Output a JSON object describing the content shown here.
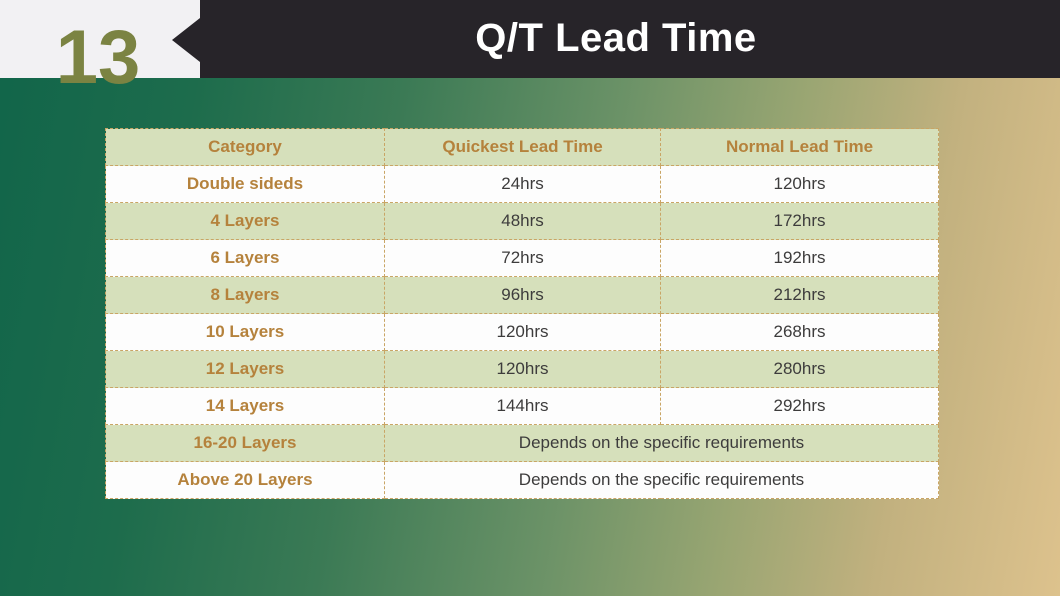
{
  "slide": {
    "number": "13",
    "title": "Q/T Lead Time"
  },
  "table": {
    "headers": [
      "Category",
      "Quickest Lead Time",
      "Normal Lead Time"
    ],
    "rows": [
      {
        "category": "Double sideds",
        "quickest": "24hrs",
        "normal": "120hrs"
      },
      {
        "category": "4 Layers",
        "quickest": "48hrs",
        "normal": "172hrs"
      },
      {
        "category": "6 Layers",
        "quickest": "72hrs",
        "normal": "192hrs"
      },
      {
        "category": "8 Layers",
        "quickest": "96hrs",
        "normal": "212hrs"
      },
      {
        "category": "10 Layers",
        "quickest": "120hrs",
        "normal": "268hrs"
      },
      {
        "category": "12 Layers",
        "quickest": "120hrs",
        "normal": "280hrs"
      },
      {
        "category": "14 Layers",
        "quickest": "144hrs",
        "normal": "292hrs"
      },
      {
        "category": "16-20 Layers",
        "merged": "Depends on the specific requirements"
      },
      {
        "category": "Above 20 Layers",
        "merged": "Depends on the specific requirements"
      }
    ]
  },
  "colors": {
    "accent_gold_text": "#b5823c",
    "row_sage": "#d6e0bb",
    "row_white": "#fdfdfd",
    "border_dashed": "#c9a565",
    "banner_bg": "#272429",
    "banner_title": "#ffffff",
    "slide_number": "#7b8342",
    "corner_block": "#f2f1f3",
    "gradient_left": "#11654a",
    "gradient_right": "#ddc28d",
    "cell_text": "#3d3c3c"
  }
}
